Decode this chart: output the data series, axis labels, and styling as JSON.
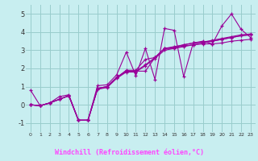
{
  "title": "",
  "xlabel": "Windchill (Refroidissement éolien,°C)",
  "xlim": [
    -0.5,
    23.5
  ],
  "ylim": [
    -1.5,
    5.5
  ],
  "yticks": [
    -1,
    0,
    1,
    2,
    3,
    4,
    5
  ],
  "xticks": [
    0,
    1,
    2,
    3,
    4,
    5,
    6,
    7,
    8,
    9,
    10,
    11,
    12,
    13,
    14,
    15,
    16,
    17,
    18,
    19,
    20,
    21,
    22,
    23
  ],
  "bg_color": "#c8eef0",
  "grid_color": "#99cccc",
  "line_color": "#990099",
  "xlabel_bg": "#440066",
  "xlabel_fg": "#ff44ff",
  "lines": [
    {
      "x": [
        0,
        1,
        2,
        3,
        4,
        5,
        6,
        7,
        8,
        9,
        10,
        11,
        12,
        13,
        14,
        15,
        16,
        17,
        18,
        19,
        20,
        21,
        22,
        23
      ],
      "y": [
        0.8,
        -0.05,
        0.1,
        0.45,
        0.55,
        -0.85,
        -0.85,
        1.05,
        1.1,
        1.65,
        2.9,
        1.6,
        3.1,
        1.4,
        4.2,
        4.1,
        1.55,
        3.4,
        3.5,
        3.35,
        4.35,
        5.0,
        4.15,
        3.7
      ]
    },
    {
      "x": [
        0,
        1,
        2,
        3,
        4,
        5,
        6,
        7,
        8,
        9,
        10,
        11,
        12,
        13,
        14,
        15,
        16,
        17,
        18,
        19,
        20,
        21,
        22,
        23
      ],
      "y": [
        0.0,
        -0.05,
        0.1,
        0.3,
        0.5,
        -0.85,
        -0.85,
        0.9,
        1.0,
        1.5,
        1.85,
        1.85,
        1.85,
        2.6,
        3.1,
        3.1,
        3.2,
        3.3,
        3.35,
        3.35,
        3.4,
        3.5,
        3.55,
        3.6
      ]
    },
    {
      "x": [
        0,
        1,
        2,
        3,
        4,
        5,
        6,
        7,
        8,
        9,
        10,
        11,
        12,
        13,
        14,
        15,
        16,
        17,
        18,
        19,
        20,
        21,
        22,
        23
      ],
      "y": [
        0.0,
        -0.05,
        0.1,
        0.3,
        0.5,
        -0.85,
        -0.85,
        0.9,
        1.0,
        1.5,
        1.85,
        1.85,
        2.2,
        2.6,
        3.1,
        3.2,
        3.3,
        3.4,
        3.45,
        3.5,
        3.6,
        3.7,
        3.8,
        3.85
      ]
    },
    {
      "x": [
        0,
        1,
        2,
        3,
        4,
        5,
        6,
        7,
        8,
        9,
        10,
        11,
        12,
        13,
        14,
        15,
        16,
        17,
        18,
        19,
        20,
        21,
        22,
        23
      ],
      "y": [
        0.0,
        -0.05,
        0.1,
        0.3,
        0.5,
        -0.85,
        -0.85,
        0.9,
        1.0,
        1.5,
        1.9,
        1.9,
        2.5,
        2.6,
        3.1,
        3.15,
        3.3,
        3.4,
        3.45,
        3.55,
        3.65,
        3.75,
        3.85,
        3.9
      ]
    },
    {
      "x": [
        0,
        1,
        2,
        3,
        4,
        5,
        6,
        7,
        8,
        9,
        10,
        11,
        12,
        13,
        14,
        15,
        16,
        17,
        18,
        19,
        20,
        21,
        22,
        23
      ],
      "y": [
        0.0,
        -0.05,
        0.1,
        0.3,
        0.5,
        -0.85,
        -0.85,
        0.85,
        0.95,
        1.45,
        1.8,
        1.8,
        2.15,
        2.55,
        3.0,
        3.1,
        3.25,
        3.3,
        3.4,
        3.5,
        3.6,
        3.7,
        3.8,
        3.85
      ]
    }
  ]
}
